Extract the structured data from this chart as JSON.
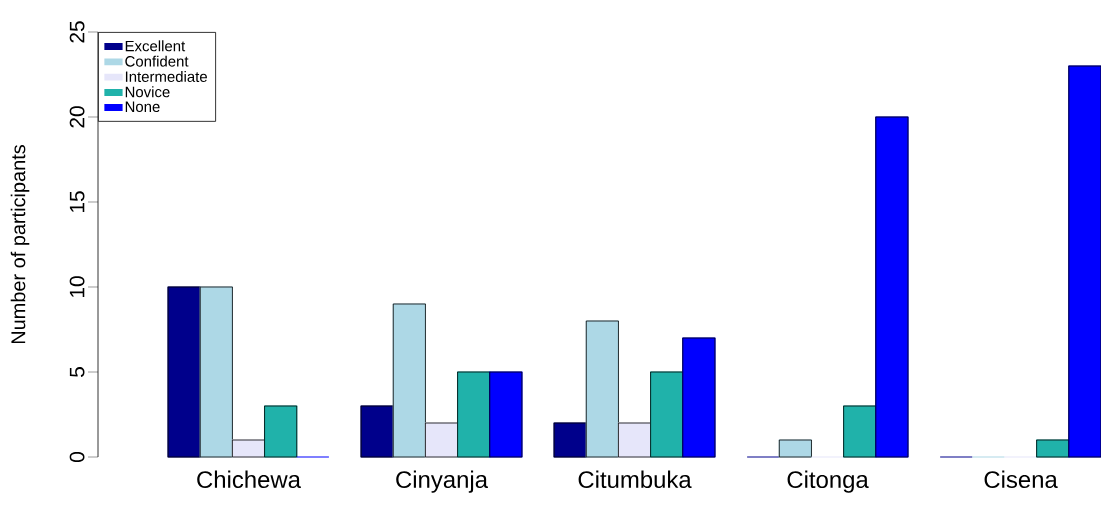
{
  "chart_data": {
    "type": "bar",
    "ylabel": "Number of participants",
    "categories": [
      "Chichewa",
      "Cinyanja",
      "Citumbuka",
      "Citonga",
      "Cisena"
    ],
    "series": [
      {
        "name": "Excellent",
        "color": "#00008b",
        "values": [
          10,
          3,
          2,
          0,
          0
        ]
      },
      {
        "name": "Confident",
        "color": "#add8e6",
        "values": [
          10,
          9,
          8,
          1,
          0
        ]
      },
      {
        "name": "Intermediate",
        "color": "#e6e6fa",
        "values": [
          1,
          2,
          2,
          0,
          0
        ]
      },
      {
        "name": "Novice",
        "color": "#20b2aa",
        "values": [
          3,
          5,
          5,
          3,
          1
        ]
      },
      {
        "name": "None",
        "color": "#0000ff",
        "values": [
          0,
          5,
          7,
          20,
          23
        ]
      }
    ],
    "ylim": [
      0,
      25
    ],
    "yticks": [
      0,
      5,
      10,
      15,
      20,
      25
    ],
    "grid": false,
    "legend": "top left"
  }
}
